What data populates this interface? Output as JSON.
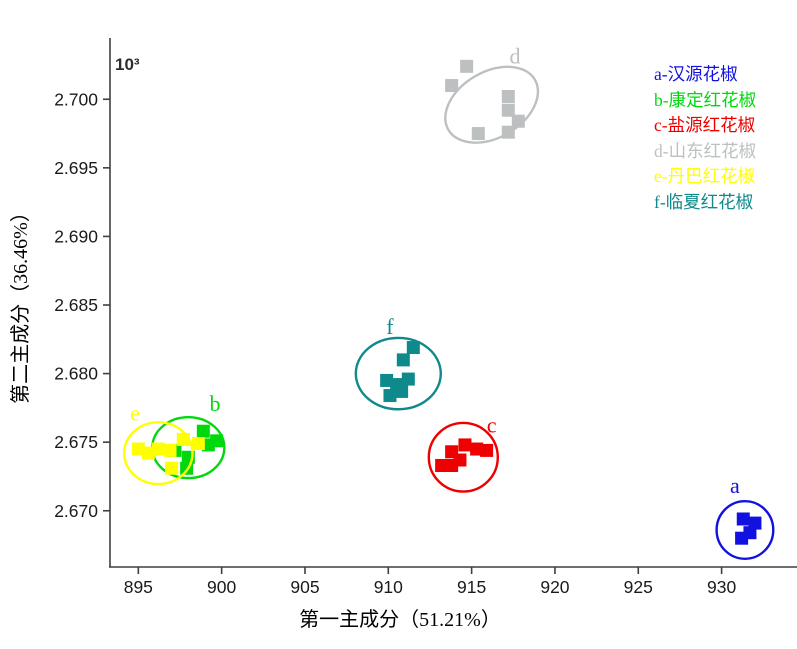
{
  "figure": {
    "background": "#ffffff"
  },
  "chart_data": {
    "type": "scatter",
    "title": "",
    "xlabel": "第一主成分（51.21%）",
    "ylabel": "第二主成分（36.46%）",
    "y_multiplier_label": "10³",
    "xlim": [
      893.3,
      934.5
    ],
    "ylim": [
      2.6659,
      2.70432
    ],
    "x_ticks": [
      895,
      900,
      905,
      910,
      915,
      920,
      925,
      930
    ],
    "y_ticks": [
      2.7,
      2.695,
      2.69,
      2.685,
      2.68,
      2.675,
      2.67
    ],
    "grid": false,
    "legend_position": "top-right",
    "marker": "square",
    "series": [
      {
        "letter": "a",
        "name": "a-汉源花椒",
        "color": "#1212e0",
        "points": [
          [
            931.3,
            2.6694
          ],
          [
            932.0,
            2.6691
          ],
          [
            931.7,
            2.6684
          ],
          [
            931.2,
            2.668
          ]
        ],
        "ellipse": {
          "cx": 931.4,
          "cy": 2.6686,
          "rx": 1.7,
          "ry": 0.0021,
          "rotation": 0
        },
        "label_pos": [
          930.8,
          2.6718
        ]
      },
      {
        "letter": "b",
        "name": "b-康定红花椒",
        "color": "#00d80e",
        "points": [
          [
            898.9,
            2.6758
          ],
          [
            899.7,
            2.6751
          ],
          [
            897.2,
            2.6744
          ],
          [
            898.0,
            2.6739
          ],
          [
            897.9,
            2.6731
          ],
          [
            899.2,
            2.6748
          ]
        ],
        "ellipse": {
          "cx": 898.0,
          "cy": 2.6746,
          "rx": 2.16,
          "ry": 0.00222,
          "rotation": 0
        },
        "label_pos": [
          899.6,
          2.6778
        ]
      },
      {
        "letter": "c",
        "name": "c-盐源红花椒",
        "color": "#ee0000",
        "points": [
          [
            913.2,
            2.6733
          ],
          [
            913.8,
            2.6743
          ],
          [
            914.3,
            2.6737
          ],
          [
            913.8,
            2.6733
          ],
          [
            914.6,
            2.6748
          ],
          [
            915.3,
            2.6745
          ],
          [
            915.9,
            2.6744
          ]
        ],
        "ellipse": {
          "cx": 914.5,
          "cy": 2.6739,
          "rx": 2.07,
          "ry": 0.0025,
          "rotation": 0
        },
        "label_pos": [
          916.2,
          2.6762
        ]
      },
      {
        "letter": "d",
        "name": "d-山东红花椒",
        "color": "#bcc0c0",
        "points": [
          [
            914.7,
            2.7024
          ],
          [
            913.8,
            2.701
          ],
          [
            917.2,
            2.7002
          ],
          [
            917.2,
            2.6992
          ],
          [
            917.8,
            2.6984
          ],
          [
            917.2,
            2.6976
          ],
          [
            915.4,
            2.6975
          ]
        ],
        "ellipse": {
          "cx": 916.2,
          "cy": 2.6996,
          "rx": 3.0,
          "ry": 0.0024,
          "rotation": -30
        },
        "label_pos": [
          917.6,
          2.7031
        ]
      },
      {
        "letter": "e",
        "name": "e-丹巴红花椒",
        "color": "#ffff00",
        "points": [
          [
            895.0,
            2.6745
          ],
          [
            895.6,
            2.6742
          ],
          [
            896.2,
            2.6745
          ],
          [
            896.9,
            2.6744
          ],
          [
            897.7,
            2.6752
          ],
          [
            898.6,
            2.6749
          ],
          [
            897.0,
            2.6731
          ]
        ],
        "ellipse": {
          "cx": 896.2,
          "cy": 2.6742,
          "rx": 2.05,
          "ry": 0.00225,
          "rotation": 0
        },
        "label_pos": [
          894.8,
          2.6771
        ]
      },
      {
        "letter": "f",
        "name": "f-临夏红花椒",
        "color": "#0e8a8c",
        "points": [
          [
            911.5,
            2.6819
          ],
          [
            910.9,
            2.681
          ],
          [
            911.2,
            2.6796
          ],
          [
            909.9,
            2.6795
          ],
          [
            910.5,
            2.6792
          ],
          [
            910.8,
            2.6787
          ],
          [
            910.1,
            2.6784
          ]
        ],
        "ellipse": {
          "cx": 910.6,
          "cy": 2.68,
          "rx": 2.55,
          "ry": 0.0026,
          "rotation": 0
        },
        "label_pos": [
          910.1,
          2.6834
        ]
      }
    ]
  }
}
